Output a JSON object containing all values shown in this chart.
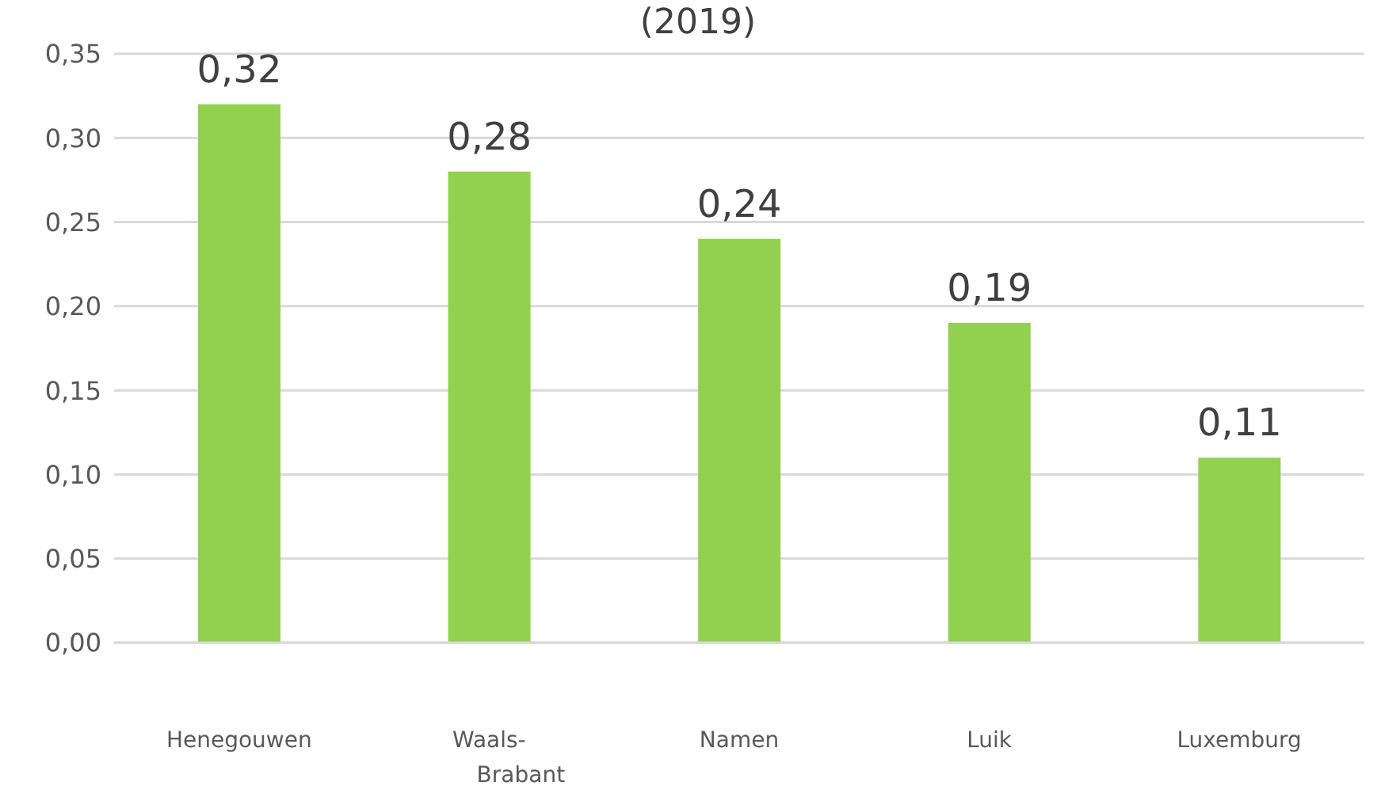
{
  "chart_data": {
    "type": "bar",
    "title": "(2019)",
    "categories": [
      "Henegouwen",
      "Waals-Brabant",
      "Namen",
      "Luik",
      "Luxemburg"
    ],
    "values": [
      0.32,
      0.28,
      0.24,
      0.19,
      0.11
    ],
    "value_labels": [
      "0,32",
      "0,28",
      "0,24",
      "0,19",
      "0,11"
    ],
    "color": "#92d050",
    "ylim": [
      0,
      0.35
    ],
    "yticks": [
      {
        "value": 0,
        "label": "0,00"
      },
      {
        "value": 0.05,
        "label": "0,05"
      },
      {
        "value": 0.1,
        "label": "0,10"
      },
      {
        "value": 0.15,
        "label": "0,15"
      },
      {
        "value": 0.2,
        "label": "0,20"
      },
      {
        "value": 0.25,
        "label": "0,25"
      },
      {
        "value": 0.3,
        "label": "0,30"
      },
      {
        "value": 0.35,
        "label": "0,35"
      }
    ],
    "grid": "y",
    "legend": false
  }
}
